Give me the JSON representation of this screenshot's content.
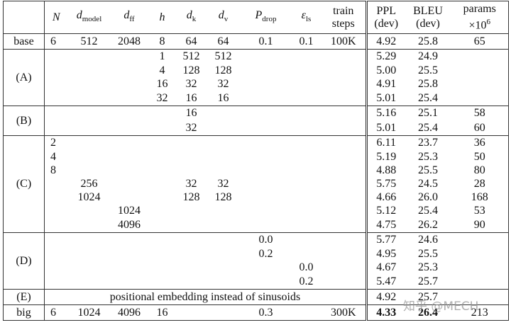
{
  "columns": [
    {
      "sym": "N"
    },
    {
      "sym": "d",
      "sub": "model"
    },
    {
      "sym": "d",
      "sub": "ff"
    },
    {
      "sym": "h"
    },
    {
      "sym": "d",
      "sub": "k"
    },
    {
      "sym": "d",
      "sub": "v"
    },
    {
      "sym": "P",
      "sub": "drop"
    },
    {
      "sym": "ε",
      "sub": "ls"
    },
    {
      "lines": [
        "train",
        "steps"
      ]
    },
    {
      "lines": [
        "PPL",
        "(dev)"
      ]
    },
    {
      "lines": [
        "BLEU",
        "(dev)"
      ]
    },
    {
      "lines": [
        "params",
        "×10"
      ],
      "sup": "6"
    }
  ],
  "groups": [
    {
      "label": "base",
      "rows": [
        {
          "0": "6",
          "1": "512",
          "2": "2048",
          "3": "8",
          "4": "64",
          "5": "64",
          "6": "0.1",
          "7": "0.1",
          "8": "100K",
          "9": "4.92",
          "10": "25.8",
          "11": "65"
        }
      ]
    },
    {
      "label": "(A)",
      "rows": [
        {
          "3": "1",
          "4": "512",
          "5": "512",
          "9": "5.29",
          "10": "24.9"
        },
        {
          "3": "4",
          "4": "128",
          "5": "128",
          "9": "5.00",
          "10": "25.5"
        },
        {
          "3": "16",
          "4": "32",
          "5": "32",
          "9": "4.91",
          "10": "25.8"
        },
        {
          "3": "32",
          "4": "16",
          "5": "16",
          "9": "5.01",
          "10": "25.4"
        }
      ]
    },
    {
      "label": "(B)",
      "rows": [
        {
          "4": "16",
          "9": "5.16",
          "10": "25.1",
          "11": "58"
        },
        {
          "4": "32",
          "9": "5.01",
          "10": "25.4",
          "11": "60"
        }
      ]
    },
    {
      "label": "(C)",
      "rows": [
        {
          "0": "2",
          "9": "6.11",
          "10": "23.7",
          "11": "36"
        },
        {
          "0": "4",
          "9": "5.19",
          "10": "25.3",
          "11": "50"
        },
        {
          "0": "8",
          "9": "4.88",
          "10": "25.5",
          "11": "80"
        },
        {
          "1": "256",
          "4": "32",
          "5": "32",
          "9": "5.75",
          "10": "24.5",
          "11": "28"
        },
        {
          "1": "1024",
          "4": "128",
          "5": "128",
          "9": "4.66",
          "10": "26.0",
          "11": "168"
        },
        {
          "2": "1024",
          "9": "5.12",
          "10": "25.4",
          "11": "53"
        },
        {
          "2": "4096",
          "9": "4.75",
          "10": "26.2",
          "11": "90"
        }
      ]
    },
    {
      "label": "(D)",
      "rows": [
        {
          "6": "0.0",
          "9": "5.77",
          "10": "24.6"
        },
        {
          "6": "0.2",
          "9": "4.95",
          "10": "25.5"
        },
        {
          "7": "0.0",
          "9": "4.67",
          "10": "25.3"
        },
        {
          "7": "0.2",
          "9": "5.47",
          "10": "25.7"
        }
      ]
    },
    {
      "label": "(E)",
      "rows": [
        {
          "note": "positional embedding instead of sinusoids",
          "9": "4.92",
          "10": "25.7"
        }
      ]
    },
    {
      "label": "big",
      "bold": [
        "9",
        "10"
      ],
      "rows": [
        {
          "0": "6",
          "1": "1024",
          "2": "4096",
          "3": "16",
          "6": "0.3",
          "8": "300K",
          "9": "4.33",
          "10": "26.4",
          "11": "213"
        }
      ]
    }
  ],
  "watermark": "知乎 @MECH"
}
